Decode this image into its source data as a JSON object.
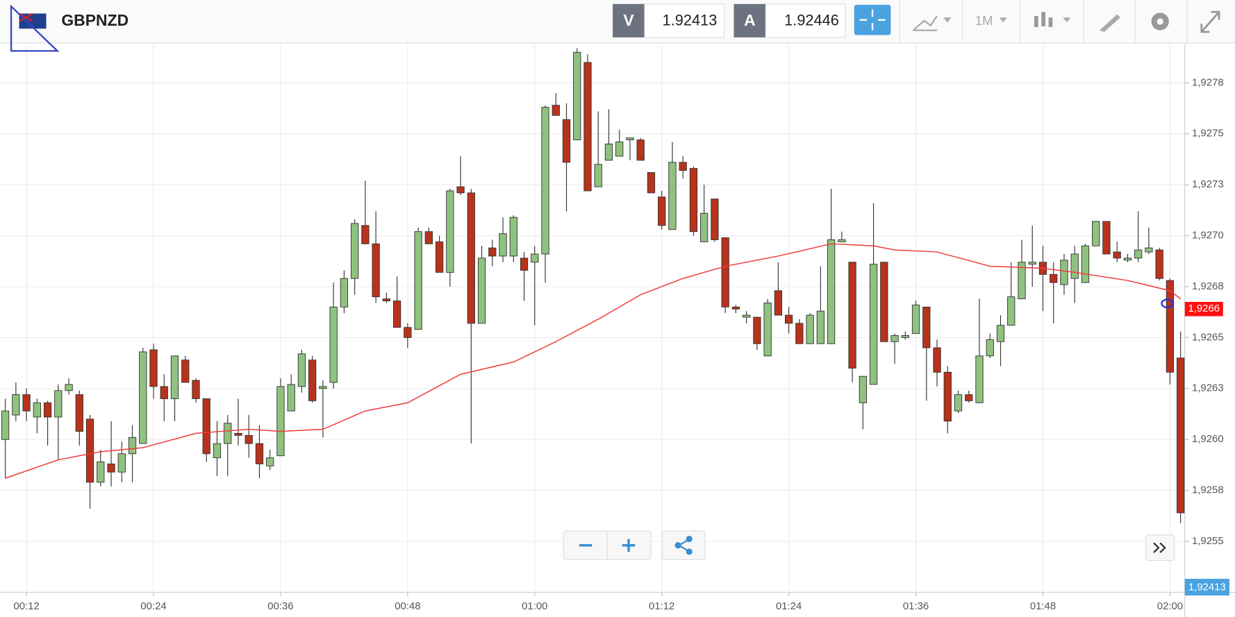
{
  "toolbar": {
    "symbol": "GBPNZD",
    "bid_label": "V",
    "bid": "1.92413",
    "ask_label": "A",
    "ask": "1.92446",
    "timeframe": "1M"
  },
  "chart_data": {
    "type": "candlestick",
    "x": [
      10,
      11,
      12,
      13,
      14,
      15,
      16,
      17,
      18,
      19,
      20,
      21,
      22,
      23,
      24,
      25,
      26,
      27,
      28,
      29,
      30,
      31,
      32,
      33,
      34,
      35,
      36,
      37,
      38,
      39,
      40,
      41,
      42,
      43,
      44,
      45,
      46,
      47,
      48,
      49,
      50,
      51,
      52,
      53,
      54,
      55,
      56,
      57,
      58,
      59,
      60,
      61,
      62,
      63,
      64,
      65,
      66,
      67,
      68,
      69,
      70,
      71,
      72,
      73,
      74,
      75,
      76,
      77,
      78,
      79,
      80,
      81,
      82,
      83,
      84,
      85,
      86,
      87,
      88,
      89,
      90,
      91,
      92,
      93,
      94,
      95,
      96,
      97,
      98,
      99,
      100,
      101,
      102,
      103,
      104,
      105,
      106,
      107,
      108,
      109,
      110,
      111,
      112,
      113,
      114,
      115,
      116,
      117,
      118,
      119,
      120,
      121
    ],
    "open": [
      1.926,
      1.92612,
      1.92622,
      1.92611,
      1.92618,
      1.92611,
      1.92624,
      1.92622,
      1.9261,
      1.92579,
      1.92588,
      1.92584,
      1.92593,
      1.92598,
      1.92644,
      1.92626,
      1.9262,
      1.92639,
      1.92629,
      1.9262,
      1.92591,
      1.92598,
      1.92603,
      1.92602,
      1.92598,
      1.92587,
      1.92592,
      1.92614,
      1.92626,
      1.92639,
      1.92625,
      1.92628,
      1.92665,
      1.92679,
      1.92705,
      1.92696,
      1.92669,
      1.92668,
      1.92655,
      1.92654,
      1.92702,
      1.92697,
      1.92682,
      1.92724,
      1.92721,
      1.92657,
      1.92694,
      1.9269,
      1.9269,
      1.92689,
      1.92687,
      1.92691,
      1.92764,
      1.92757,
      1.92747,
      1.92785,
      1.92724,
      1.92737,
      1.92739,
      1.92747,
      1.92747,
      1.92731,
      1.92719,
      1.92703,
      1.92736,
      1.92733,
      1.92697,
      1.92718,
      1.92699,
      1.92665,
      1.9266,
      1.9266,
      1.92641,
      1.92673,
      1.92661,
      1.92657,
      1.92647,
      1.92647,
      1.92647,
      1.92697,
      1.92687,
      1.92618,
      1.92627,
      1.92687,
      1.92648,
      1.9265,
      1.92652,
      1.92665,
      1.92645,
      1.92633,
      1.92614,
      1.92622,
      1.92618,
      1.92641,
      1.92648,
      1.92656,
      1.92669,
      1.92686,
      1.92687,
      1.92681,
      1.92676,
      1.92679,
      1.92677,
      1.92695,
      1.92707,
      1.92692,
      1.92688,
      1.92689,
      1.92692,
      1.92693,
      1.92678,
      1.9264
    ],
    "high": [
      1.9262,
      1.92628,
      1.92625,
      1.9262,
      1.92619,
      1.92627,
      1.9263,
      1.92624,
      1.92612,
      1.92595,
      1.92609,
      1.92599,
      1.92607,
      1.92645,
      1.92647,
      1.92632,
      1.92641,
      1.92641,
      1.9263,
      1.9262,
      1.92609,
      1.92612,
      1.9262,
      1.92612,
      1.92607,
      1.92595,
      1.9263,
      1.92632,
      1.92644,
      1.92641,
      1.92629,
      1.92677,
      1.92683,
      1.92708,
      1.92727,
      1.92712,
      1.92672,
      1.9268,
      1.92657,
      1.92704,
      1.92704,
      1.927,
      1.92723,
      1.92739,
      1.92723,
      1.92695,
      1.92698,
      1.92709,
      1.9271,
      1.92692,
      1.92695,
      1.92764,
      1.9277,
      1.92765,
      1.92792,
      1.92789,
      1.92761,
      1.92762,
      1.92752,
      1.92748,
      1.92748,
      1.92731,
      1.92722,
      1.92746,
      1.92739,
      1.92734,
      1.92725,
      1.92718,
      1.92699,
      1.92666,
      1.92663,
      1.9266,
      1.92669,
      1.92687,
      1.92665,
      1.92659,
      1.92662,
      1.92685,
      1.92723,
      1.92702,
      1.92687,
      1.92631,
      1.92716,
      1.92687,
      1.92652,
      1.92653,
      1.92668,
      1.92665,
      1.92649,
      1.92636,
      1.92624,
      1.92624,
      1.92669,
      1.92652,
      1.92661,
      1.92687,
      1.92698,
      1.92705,
      1.92695,
      1.92687,
      1.92691,
      1.92695,
      1.92696,
      1.92707,
      1.92707,
      1.92697,
      1.92691,
      1.92712,
      1.92704,
      1.92694,
      1.92679,
      1.92653
    ],
    "low": [
      1.92581,
      1.92609,
      1.92609,
      1.92603,
      1.92597,
      1.9259,
      1.92622,
      1.92597,
      1.92566,
      1.92577,
      1.92577,
      1.92579,
      1.92579,
      1.92598,
      1.9262,
      1.92609,
      1.92609,
      1.92628,
      1.92618,
      1.92589,
      1.92582,
      1.92582,
      1.92597,
      1.92591,
      1.92581,
      1.92585,
      1.92592,
      1.92614,
      1.92623,
      1.92618,
      1.92601,
      1.92625,
      1.92662,
      1.92671,
      1.92696,
      1.92667,
      1.92667,
      1.92655,
      1.92645,
      1.92654,
      1.92696,
      1.92682,
      1.92675,
      1.9272,
      1.92598,
      1.92657,
      1.92685,
      1.92687,
      1.92687,
      1.92668,
      1.92656,
      1.92677,
      1.92759,
      1.92712,
      1.92747,
      1.92722,
      1.92724,
      1.92737,
      1.92739,
      1.92737,
      1.92737,
      1.92721,
      1.92703,
      1.92703,
      1.92728,
      1.927,
      1.92697,
      1.92697,
      1.92662,
      1.92662,
      1.92657,
      1.92644,
      1.92641,
      1.92661,
      1.92652,
      1.92647,
      1.92647,
      1.92647,
      1.92647,
      1.92697,
      1.92628,
      1.92605,
      1.92627,
      1.92648,
      1.92637,
      1.92649,
      1.92652,
      1.92619,
      1.92626,
      1.92603,
      1.92613,
      1.92618,
      1.92618,
      1.9264,
      1.92636,
      1.92656,
      1.92669,
      1.92675,
      1.92663,
      1.92657,
      1.92671,
      1.92667,
      1.92677,
      1.92695,
      1.92691,
      1.92687,
      1.92687,
      1.92687,
      1.92691,
      1.92678,
      1.92627,
      1.92559
    ],
    "close": [
      1.92614,
      1.92622,
      1.92614,
      1.92618,
      1.92611,
      1.92624,
      1.92627,
      1.92604,
      1.92579,
      1.92589,
      1.92584,
      1.92593,
      1.92601,
      1.92643,
      1.92626,
      1.9262,
      1.92641,
      1.92628,
      1.9262,
      1.92593,
      1.92598,
      1.92608,
      1.92602,
      1.92598,
      1.92588,
      1.92591,
      1.92626,
      1.92627,
      1.92642,
      1.92619,
      1.92626,
      1.92665,
      1.92679,
      1.92706,
      1.92696,
      1.9267,
      1.92668,
      1.92655,
      1.9265,
      1.92702,
      1.92696,
      1.92682,
      1.92722,
      1.92721,
      1.92657,
      1.92689,
      1.9269,
      1.92701,
      1.92709,
      1.92683,
      1.92691,
      1.92763,
      1.92759,
      1.92736,
      1.9279,
      1.92722,
      1.92735,
      1.92745,
      1.92746,
      1.92748,
      1.92737,
      1.92721,
      1.92705,
      1.92736,
      1.92732,
      1.92702,
      1.92711,
      1.92698,
      1.92665,
      1.92664,
      1.92661,
      1.92647,
      1.92667,
      1.92661,
      1.92657,
      1.92647,
      1.92661,
      1.92663,
      1.92698,
      1.92698,
      1.92635,
      1.92631,
      1.92686,
      1.92648,
      1.92651,
      1.92651,
      1.92666,
      1.92645,
      1.92633,
      1.92609,
      1.92622,
      1.92619,
      1.92641,
      1.92649,
      1.92656,
      1.9267,
      1.92687,
      1.92687,
      1.92681,
      1.92677,
      1.92688,
      1.92691,
      1.92695,
      1.92707,
      1.92691,
      1.92689,
      1.92689,
      1.92693,
      1.92694,
      1.92679,
      1.92633,
      1.92564
    ],
    "up_color": "#8fc17f",
    "down_color": "#b8331c",
    "moving_average": {
      "color": "#ef3b3b",
      "x": [
        10,
        15,
        19,
        23,
        28,
        33,
        36,
        40,
        44,
        48,
        53,
        58,
        62,
        66,
        70,
        74,
        78,
        83,
        88,
        92,
        94,
        98,
        103,
        108,
        111,
        116,
        120,
        121
      ],
      "values": [
        1.92581,
        1.9259,
        1.92594,
        1.92596,
        1.92603,
        1.92605,
        1.92604,
        1.92605,
        1.92614,
        1.92618,
        1.92632,
        1.92638,
        1.92648,
        1.92659,
        1.92671,
        1.92679,
        1.92685,
        1.9269,
        1.92696,
        1.92695,
        1.92693,
        1.92692,
        1.92685,
        1.92684,
        1.92682,
        1.92678,
        1.92673,
        1.92669
      ]
    },
    "price_tag": {
      "value": 1.92664,
      "label": "1,9266"
    },
    "bid_tag": "1,92413",
    "xlim": [
      9.5,
      121.4
    ],
    "xticks": [
      {
        "value": 12,
        "label": "00:12"
      },
      {
        "value": 24,
        "label": "00:24"
      },
      {
        "value": 36,
        "label": "00:36"
      },
      {
        "value": 48,
        "label": "00:48"
      },
      {
        "value": 60,
        "label": "01:00"
      },
      {
        "value": 72,
        "label": "01:12"
      },
      {
        "value": 84,
        "label": "01:24"
      },
      {
        "value": 96,
        "label": "01:36"
      },
      {
        "value": 108,
        "label": "01:48"
      },
      {
        "value": 120,
        "label": "02:00"
      }
    ],
    "ylim": [
      1.92525,
      1.92794
    ],
    "yticks": [
      {
        "value": 1.92775,
        "label": "1,9278"
      },
      {
        "value": 1.9275,
        "label": "1,9275"
      },
      {
        "value": 1.92725,
        "label": "1,9273"
      },
      {
        "value": 1.927,
        "label": "1,9270"
      },
      {
        "value": 1.92675,
        "label": "1,9268"
      },
      {
        "value": 1.9265,
        "label": "1,9265"
      },
      {
        "value": 1.92625,
        "label": "1,9263"
      },
      {
        "value": 1.926,
        "label": "1,9260"
      },
      {
        "value": 1.92575,
        "label": "1,9258"
      },
      {
        "value": 1.9255,
        "label": "1,9255"
      }
    ],
    "grid": true
  }
}
